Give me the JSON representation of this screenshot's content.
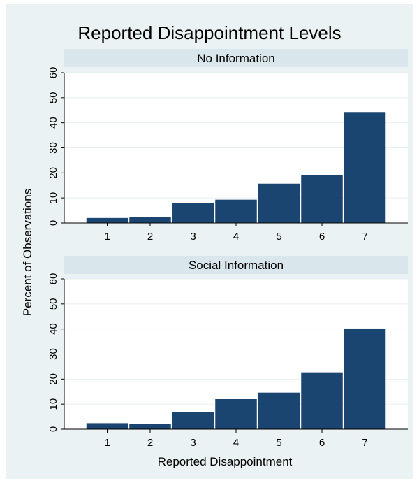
{
  "chart_data": {
    "type": "bar",
    "title": "Reported Disappointment Levels",
    "xlabel": "Reported Disappointment",
    "ylabel": "Percent of Observations",
    "categories": [
      "1",
      "2",
      "3",
      "4",
      "5",
      "6",
      "7"
    ],
    "ylim": [
      0,
      60
    ],
    "yticks": [
      0,
      10,
      20,
      30,
      40,
      50,
      60
    ],
    "grid": true,
    "bar_color": "#1b4571",
    "background_color": "#eaf2f3",
    "strip_color": "#d9e6eb",
    "panels": [
      {
        "name": "No Information",
        "values": [
          2.0,
          2.5,
          8.0,
          9.3,
          15.7,
          19.2,
          44.3
        ]
      },
      {
        "name": "Social Information",
        "values": [
          2.4,
          2.1,
          6.8,
          12.0,
          14.6,
          22.7,
          40.2
        ]
      }
    ]
  }
}
